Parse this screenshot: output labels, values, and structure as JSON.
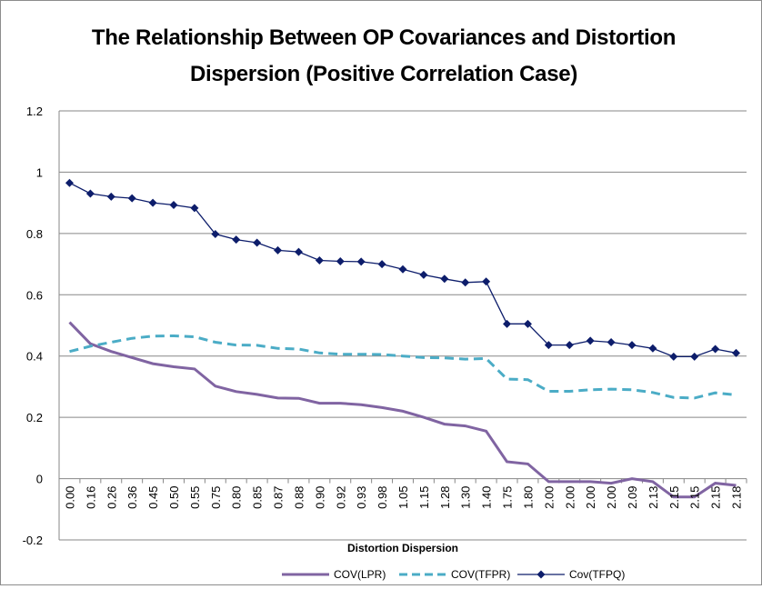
{
  "chart_data": {
    "type": "line",
    "title_line1": "The Relationship Between OP Covariances and Distortion",
    "title_line2": "Dispersion (Positive Correlation Case)",
    "xlabel": "Distortion Dispersion",
    "ylabel": "",
    "ylim": [
      -0.2,
      1.2
    ],
    "yticks": [
      "-0.2",
      "0",
      "0.2",
      "0.4",
      "0.6",
      "0.8",
      "1",
      "1.2"
    ],
    "ytick_values": [
      -0.2,
      0,
      0.2,
      0.4,
      0.6,
      0.8,
      1,
      1.2
    ],
    "grid": "horizontal",
    "legend_position": "bottom",
    "categories": [
      "0.00",
      "0.16",
      "0.26",
      "0.36",
      "0.45",
      "0.50",
      "0.55",
      "0.75",
      "0.80",
      "0.85",
      "0.87",
      "0.88",
      "0.90",
      "0.92",
      "0.93",
      "0.98",
      "1.05",
      "1.15",
      "1.28",
      "1.30",
      "1.40",
      "1.75",
      "1.80",
      "2.00",
      "2.00",
      "2.00",
      "2.00",
      "2.09",
      "2.13",
      "2.15",
      "2.15",
      "2.15",
      "2.18"
    ],
    "series": [
      {
        "name": "COV(LPR)",
        "color": "#8064a2",
        "style": "solid",
        "values": [
          0.51,
          0.44,
          0.415,
          0.395,
          0.375,
          0.365,
          0.358,
          0.302,
          0.284,
          0.275,
          0.263,
          0.262,
          0.246,
          0.246,
          0.241,
          0.232,
          0.22,
          0.2,
          0.178,
          0.172,
          0.155,
          0.055,
          0.048,
          -0.01,
          -0.01,
          -0.01,
          -0.015,
          0.0,
          -0.01,
          -0.06,
          -0.06,
          -0.015,
          -0.022
        ]
      },
      {
        "name": "COV(TFPR)",
        "color": "#4bacc6",
        "style": "dashed",
        "values": [
          0.415,
          0.432,
          0.445,
          0.458,
          0.465,
          0.466,
          0.463,
          0.445,
          0.436,
          0.435,
          0.425,
          0.423,
          0.41,
          0.406,
          0.406,
          0.405,
          0.4,
          0.395,
          0.394,
          0.39,
          0.392,
          0.325,
          0.323,
          0.285,
          0.285,
          0.29,
          0.292,
          0.29,
          0.281,
          0.265,
          0.263,
          0.28,
          0.273
        ]
      },
      {
        "name": "Cov(TFPQ)",
        "color": "#0d1d6b",
        "style": "solid-marker",
        "values": [
          0.965,
          0.93,
          0.92,
          0.915,
          0.9,
          0.893,
          0.883,
          0.798,
          0.78,
          0.77,
          0.745,
          0.74,
          0.712,
          0.709,
          0.708,
          0.7,
          0.683,
          0.665,
          0.652,
          0.64,
          0.643,
          0.505,
          0.505,
          0.436,
          0.436,
          0.45,
          0.445,
          0.436,
          0.425,
          0.398,
          0.398,
          0.423,
          0.41
        ]
      }
    ]
  }
}
